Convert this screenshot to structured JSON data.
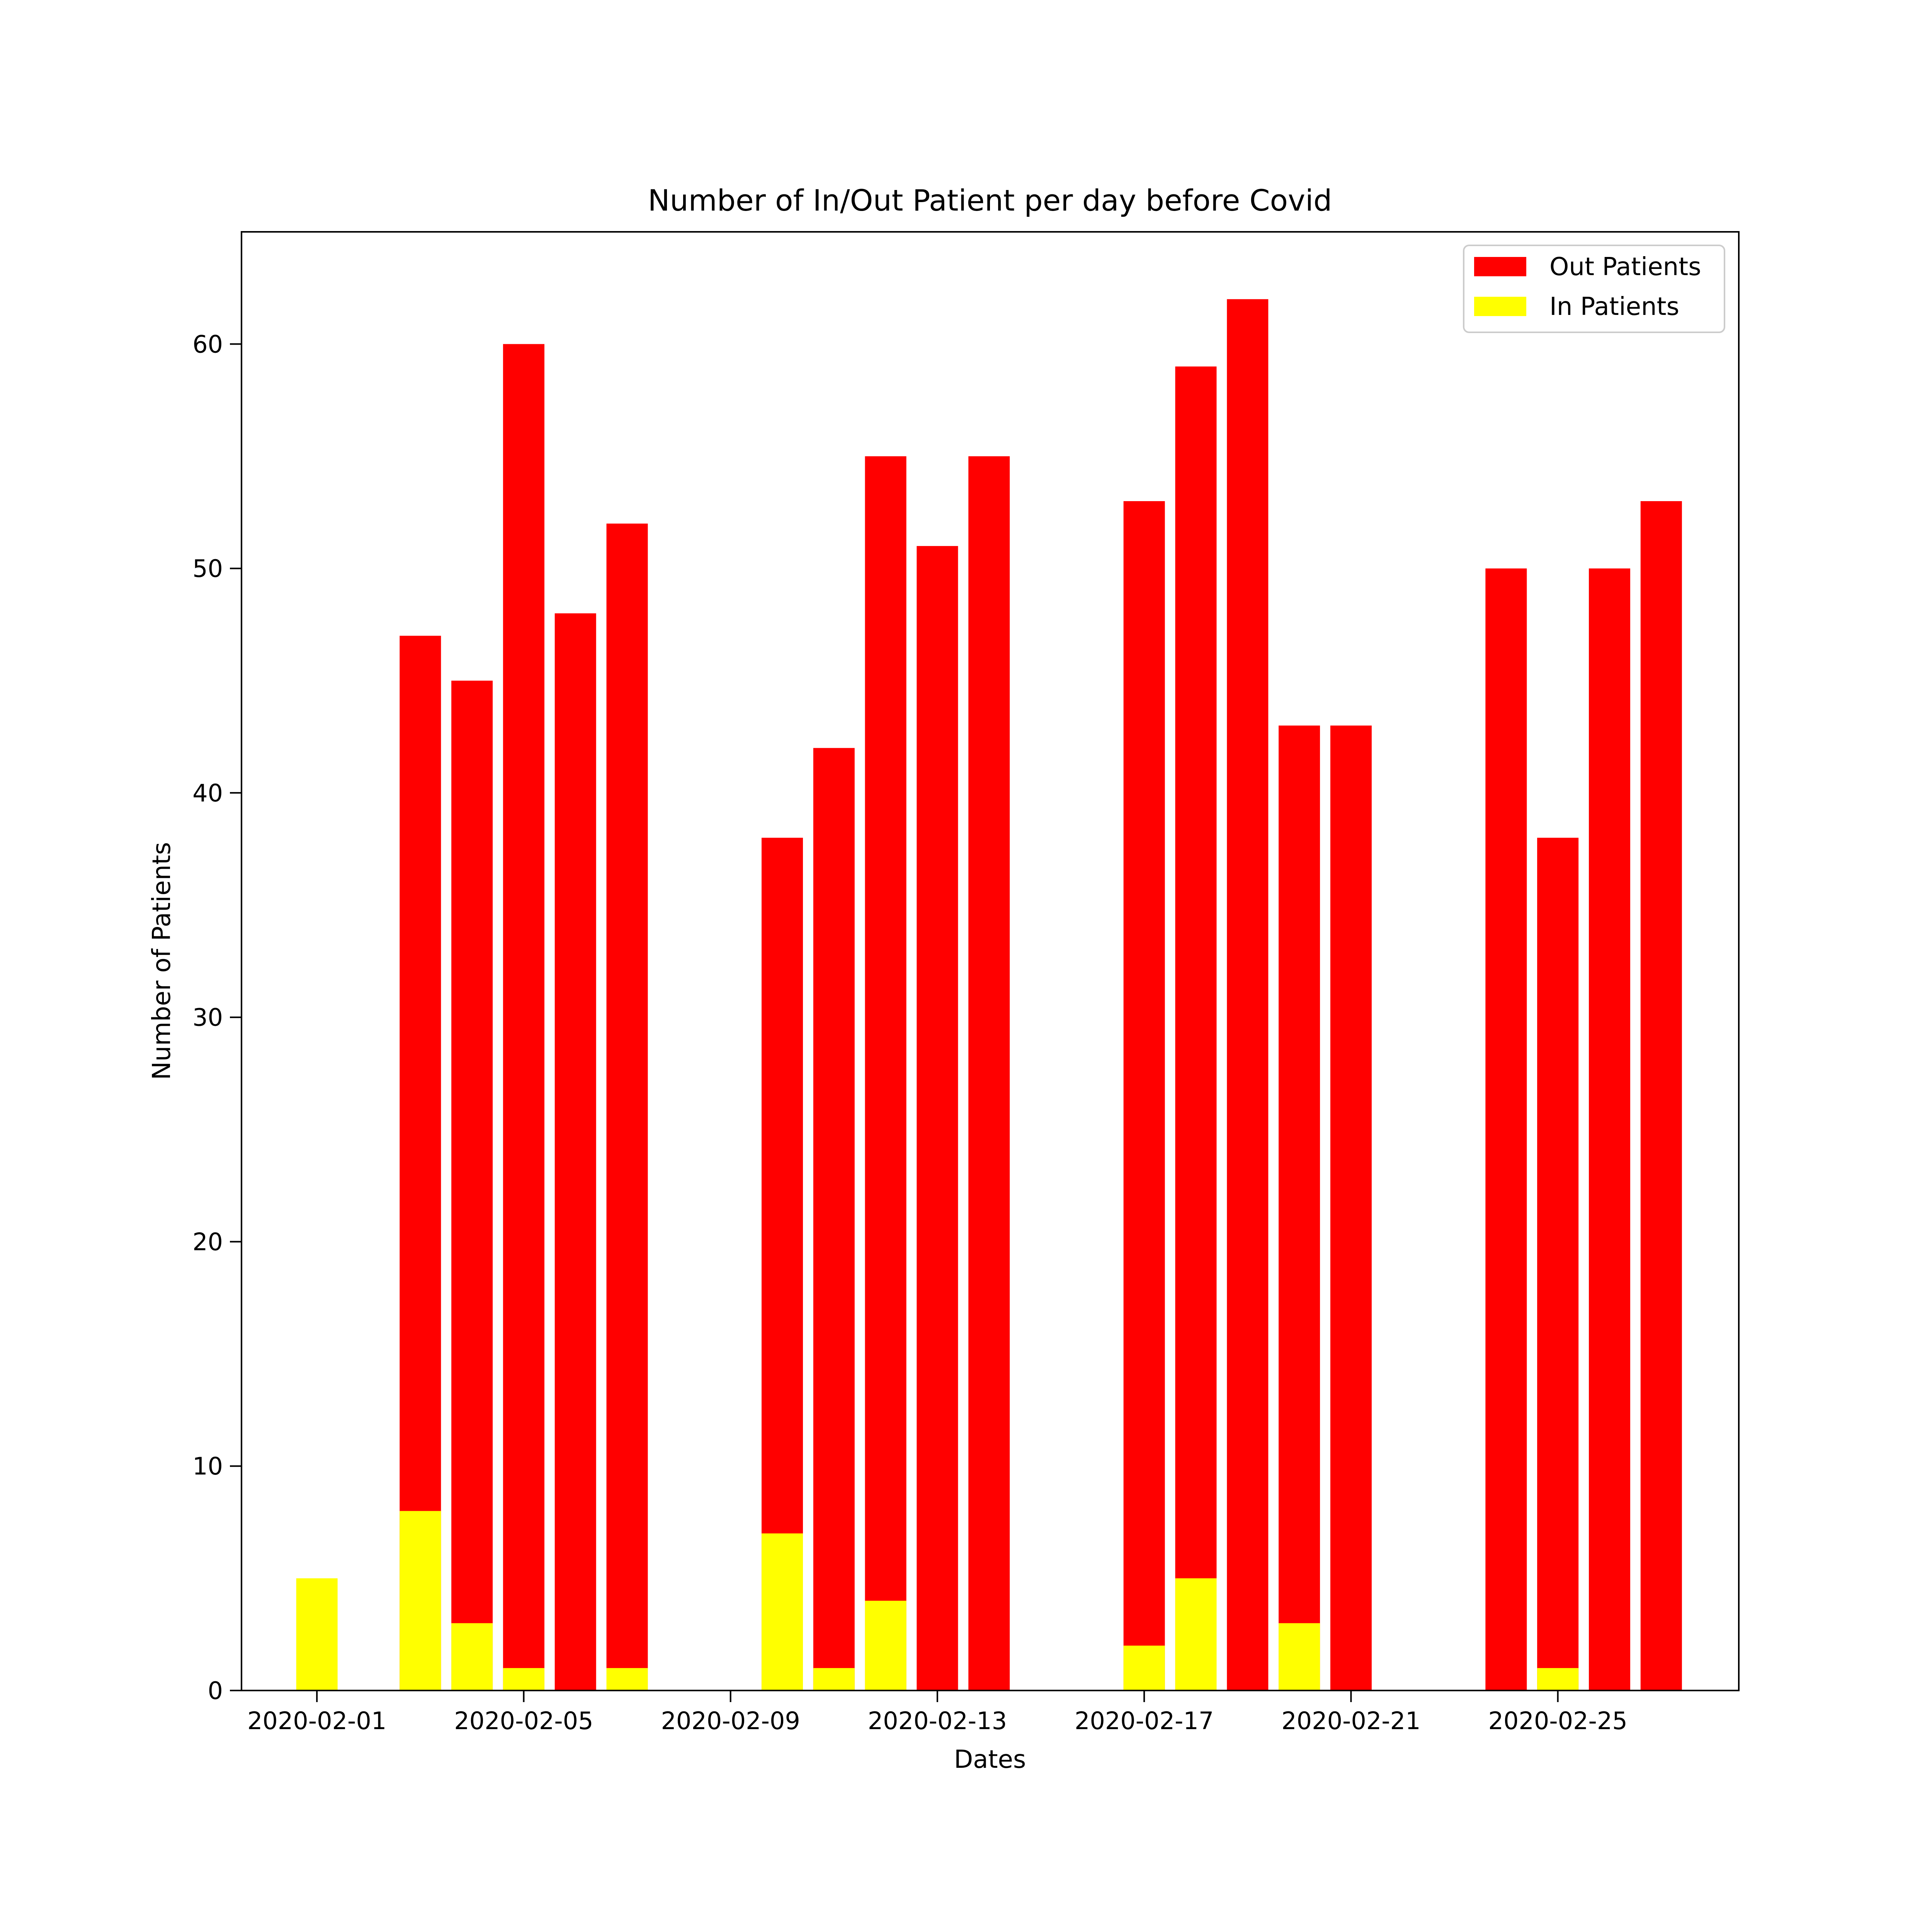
{
  "chart_data": {
    "type": "bar",
    "stacked": "overlay",
    "title": "Number of In/Out Patient per day before Covid",
    "xlabel": "Dates",
    "ylabel": "Number of Patients",
    "ylim": [
      0,
      65
    ],
    "xlim": [
      "2020-01-30T13:00",
      "2020-02-28T12:00"
    ],
    "yticks": [
      0,
      10,
      20,
      30,
      40,
      50,
      60
    ],
    "xticks": [
      "2020-02-01",
      "2020-02-05",
      "2020-02-09",
      "2020-02-13",
      "2020-02-17",
      "2020-02-21",
      "2020-02-25"
    ],
    "grid": false,
    "legend": "top-right",
    "bar_width_days": 0.8,
    "series": [
      {
        "name": "Out Patients",
        "color": "#ff0000",
        "points": [
          {
            "x": "2020-02-03",
            "y": 47
          },
          {
            "x": "2020-02-04",
            "y": 45
          },
          {
            "x": "2020-02-05",
            "y": 60
          },
          {
            "x": "2020-02-06",
            "y": 48
          },
          {
            "x": "2020-02-07",
            "y": 52
          },
          {
            "x": "2020-02-10",
            "y": 38
          },
          {
            "x": "2020-02-11",
            "y": 42
          },
          {
            "x": "2020-02-12",
            "y": 55
          },
          {
            "x": "2020-02-13",
            "y": 51
          },
          {
            "x": "2020-02-14",
            "y": 55
          },
          {
            "x": "2020-02-17",
            "y": 53
          },
          {
            "x": "2020-02-18",
            "y": 59
          },
          {
            "x": "2020-02-19",
            "y": 62
          },
          {
            "x": "2020-02-20",
            "y": 43
          },
          {
            "x": "2020-02-21",
            "y": 43
          },
          {
            "x": "2020-02-24",
            "y": 50
          },
          {
            "x": "2020-02-25",
            "y": 38
          },
          {
            "x": "2020-02-26",
            "y": 50
          },
          {
            "x": "2020-02-27",
            "y": 53
          }
        ]
      },
      {
        "name": "In Patients",
        "color": "#ffff00",
        "points": [
          {
            "x": "2020-02-01",
            "y": 5
          },
          {
            "x": "2020-02-03",
            "y": 8
          },
          {
            "x": "2020-02-04",
            "y": 3
          },
          {
            "x": "2020-02-05",
            "y": 1
          },
          {
            "x": "2020-02-07",
            "y": 1
          },
          {
            "x": "2020-02-10",
            "y": 7
          },
          {
            "x": "2020-02-11",
            "y": 1
          },
          {
            "x": "2020-02-12",
            "y": 4
          },
          {
            "x": "2020-02-17",
            "y": 2
          },
          {
            "x": "2020-02-18",
            "y": 5
          },
          {
            "x": "2020-02-20",
            "y": 3
          },
          {
            "x": "2020-02-25",
            "y": 1
          }
        ]
      }
    ]
  }
}
